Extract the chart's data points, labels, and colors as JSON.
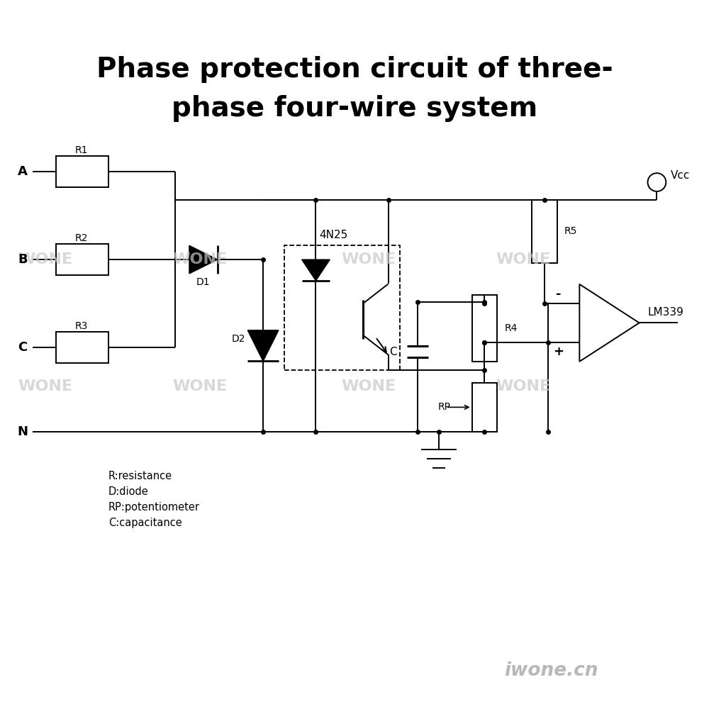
{
  "title_line1": "Phase protection circuit of three-",
  "title_line2": "phase four-wire system",
  "bg_color": "#ffffff",
  "line_color": "#000000",
  "legend_text": "R:resistance\nD:diode\nRP:potentiometer\nC:capacitance",
  "brand_text": "iwone.cn",
  "vcc_label": "Vcc",
  "lm339_label": "LM339"
}
